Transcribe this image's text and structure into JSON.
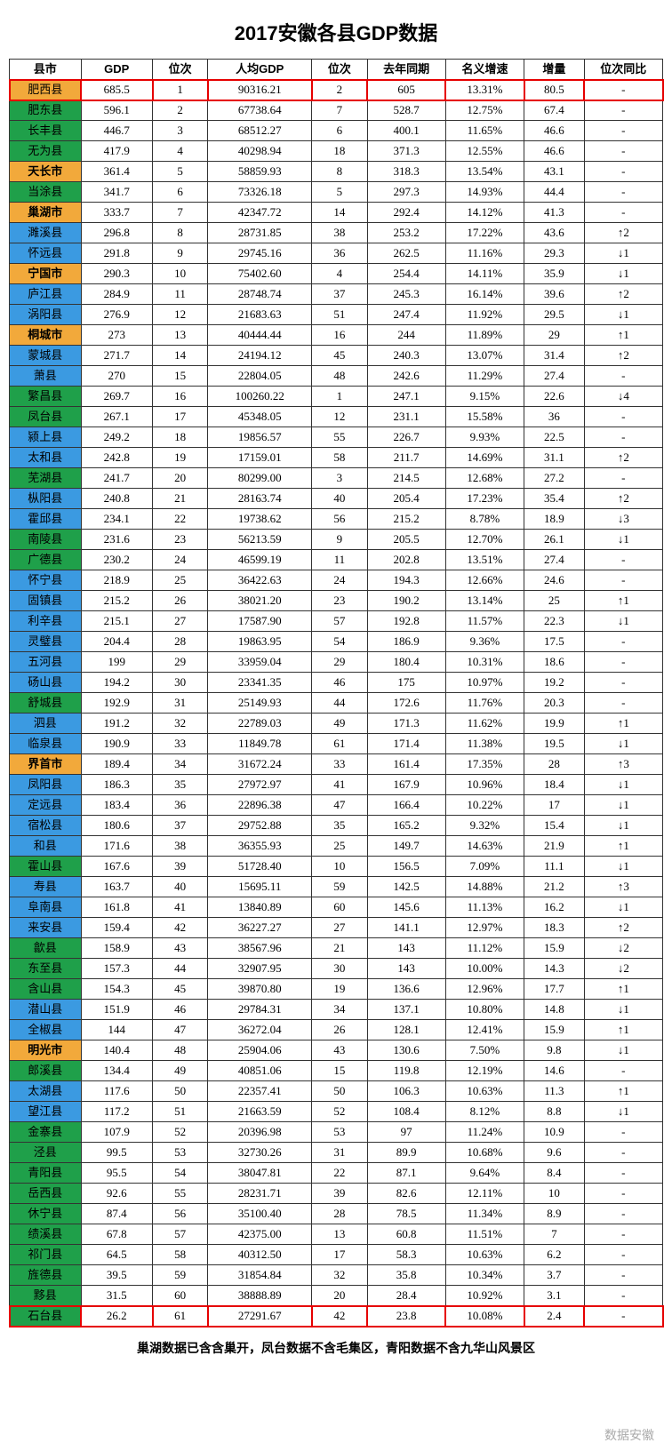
{
  "title": "2017安徽各县GDP数据",
  "footnote": "巢湖数据已含含巢开，凤台数据不含毛集区，青阳数据不含九华山风景区",
  "watermark": "数据安徽",
  "columns": [
    "县市",
    "GDP",
    "位次",
    "人均GDP",
    "位次",
    "去年同期",
    "名义增速",
    "增量",
    "位次同比"
  ],
  "colors": {
    "green": "#1fa04a",
    "blue": "#3b9ae1",
    "orange": "#f2a93b",
    "white": "#ffffff"
  },
  "rows": [
    {
      "c": "肥西县",
      "g": "685.5",
      "r1": "1",
      "p": "90316.21",
      "r2": "2",
      "pv": "605",
      "gr": "13.31%",
      "inc": "80.5",
      "ch": "-",
      "col": "orange",
      "city": false,
      "hl": true
    },
    {
      "c": "肥东县",
      "g": "596.1",
      "r1": "2",
      "p": "67738.64",
      "r2": "7",
      "pv": "528.7",
      "gr": "12.75%",
      "inc": "67.4",
      "ch": "-",
      "col": "green",
      "city": false
    },
    {
      "c": "长丰县",
      "g": "446.7",
      "r1": "3",
      "p": "68512.27",
      "r2": "6",
      "pv": "400.1",
      "gr": "11.65%",
      "inc": "46.6",
      "ch": "-",
      "col": "green",
      "city": false
    },
    {
      "c": "无为县",
      "g": "417.9",
      "r1": "4",
      "p": "40298.94",
      "r2": "18",
      "pv": "371.3",
      "gr": "12.55%",
      "inc": "46.6",
      "ch": "-",
      "col": "green",
      "city": false
    },
    {
      "c": "天长市",
      "g": "361.4",
      "r1": "5",
      "p": "58859.93",
      "r2": "8",
      "pv": "318.3",
      "gr": "13.54%",
      "inc": "43.1",
      "ch": "-",
      "col": "orange",
      "city": true
    },
    {
      "c": "当涂县",
      "g": "341.7",
      "r1": "6",
      "p": "73326.18",
      "r2": "5",
      "pv": "297.3",
      "gr": "14.93%",
      "inc": "44.4",
      "ch": "-",
      "col": "green",
      "city": false
    },
    {
      "c": "巢湖市",
      "g": "333.7",
      "r1": "7",
      "p": "42347.72",
      "r2": "14",
      "pv": "292.4",
      "gr": "14.12%",
      "inc": "41.3",
      "ch": "-",
      "col": "orange",
      "city": true
    },
    {
      "c": "濉溪县",
      "g": "296.8",
      "r1": "8",
      "p": "28731.85",
      "r2": "38",
      "pv": "253.2",
      "gr": "17.22%",
      "inc": "43.6",
      "ch": "↑2",
      "col": "blue",
      "city": false
    },
    {
      "c": "怀远县",
      "g": "291.8",
      "r1": "9",
      "p": "29745.16",
      "r2": "36",
      "pv": "262.5",
      "gr": "11.16%",
      "inc": "29.3",
      "ch": "↓1",
      "col": "blue",
      "city": false
    },
    {
      "c": "宁国市",
      "g": "290.3",
      "r1": "10",
      "p": "75402.60",
      "r2": "4",
      "pv": "254.4",
      "gr": "14.11%",
      "inc": "35.9",
      "ch": "↓1",
      "col": "orange",
      "city": true
    },
    {
      "c": "庐江县",
      "g": "284.9",
      "r1": "11",
      "p": "28748.74",
      "r2": "37",
      "pv": "245.3",
      "gr": "16.14%",
      "inc": "39.6",
      "ch": "↑2",
      "col": "blue",
      "city": false
    },
    {
      "c": "涡阳县",
      "g": "276.9",
      "r1": "12",
      "p": "21683.63",
      "r2": "51",
      "pv": "247.4",
      "gr": "11.92%",
      "inc": "29.5",
      "ch": "↓1",
      "col": "blue",
      "city": false
    },
    {
      "c": "桐城市",
      "g": "273",
      "r1": "13",
      "p": "40444.44",
      "r2": "16",
      "pv": "244",
      "gr": "11.89%",
      "inc": "29",
      "ch": "↑1",
      "col": "orange",
      "city": true
    },
    {
      "c": "蒙城县",
      "g": "271.7",
      "r1": "14",
      "p": "24194.12",
      "r2": "45",
      "pv": "240.3",
      "gr": "13.07%",
      "inc": "31.4",
      "ch": "↑2",
      "col": "blue",
      "city": false
    },
    {
      "c": "萧县",
      "g": "270",
      "r1": "15",
      "p": "22804.05",
      "r2": "48",
      "pv": "242.6",
      "gr": "11.29%",
      "inc": "27.4",
      "ch": "-",
      "col": "blue",
      "city": false
    },
    {
      "c": "繁昌县",
      "g": "269.7",
      "r1": "16",
      "p": "100260.22",
      "r2": "1",
      "pv": "247.1",
      "gr": "9.15%",
      "inc": "22.6",
      "ch": "↓4",
      "col": "green",
      "city": false
    },
    {
      "c": "凤台县",
      "g": "267.1",
      "r1": "17",
      "p": "45348.05",
      "r2": "12",
      "pv": "231.1",
      "gr": "15.58%",
      "inc": "36",
      "ch": "-",
      "col": "green",
      "city": false
    },
    {
      "c": "颍上县",
      "g": "249.2",
      "r1": "18",
      "p": "19856.57",
      "r2": "55",
      "pv": "226.7",
      "gr": "9.93%",
      "inc": "22.5",
      "ch": "-",
      "col": "blue",
      "city": false
    },
    {
      "c": "太和县",
      "g": "242.8",
      "r1": "19",
      "p": "17159.01",
      "r2": "58",
      "pv": "211.7",
      "gr": "14.69%",
      "inc": "31.1",
      "ch": "↑2",
      "col": "blue",
      "city": false
    },
    {
      "c": "芜湖县",
      "g": "241.7",
      "r1": "20",
      "p": "80299.00",
      "r2": "3",
      "pv": "214.5",
      "gr": "12.68%",
      "inc": "27.2",
      "ch": "-",
      "col": "green",
      "city": false
    },
    {
      "c": "枞阳县",
      "g": "240.8",
      "r1": "21",
      "p": "28163.74",
      "r2": "40",
      "pv": "205.4",
      "gr": "17.23%",
      "inc": "35.4",
      "ch": "↑2",
      "col": "blue",
      "city": false
    },
    {
      "c": "霍邱县",
      "g": "234.1",
      "r1": "22",
      "p": "19738.62",
      "r2": "56",
      "pv": "215.2",
      "gr": "8.78%",
      "inc": "18.9",
      "ch": "↓3",
      "col": "blue",
      "city": false
    },
    {
      "c": "南陵县",
      "g": "231.6",
      "r1": "23",
      "p": "56213.59",
      "r2": "9",
      "pv": "205.5",
      "gr": "12.70%",
      "inc": "26.1",
      "ch": "↓1",
      "col": "green",
      "city": false
    },
    {
      "c": "广德县",
      "g": "230.2",
      "r1": "24",
      "p": "46599.19",
      "r2": "11",
      "pv": "202.8",
      "gr": "13.51%",
      "inc": "27.4",
      "ch": "-",
      "col": "green",
      "city": false
    },
    {
      "c": "怀宁县",
      "g": "218.9",
      "r1": "25",
      "p": "36422.63",
      "r2": "24",
      "pv": "194.3",
      "gr": "12.66%",
      "inc": "24.6",
      "ch": "-",
      "col": "blue",
      "city": false
    },
    {
      "c": "固镇县",
      "g": "215.2",
      "r1": "26",
      "p": "38021.20",
      "r2": "23",
      "pv": "190.2",
      "gr": "13.14%",
      "inc": "25",
      "ch": "↑1",
      "col": "blue",
      "city": false
    },
    {
      "c": "利辛县",
      "g": "215.1",
      "r1": "27",
      "p": "17587.90",
      "r2": "57",
      "pv": "192.8",
      "gr": "11.57%",
      "inc": "22.3",
      "ch": "↓1",
      "col": "blue",
      "city": false
    },
    {
      "c": "灵璧县",
      "g": "204.4",
      "r1": "28",
      "p": "19863.95",
      "r2": "54",
      "pv": "186.9",
      "gr": "9.36%",
      "inc": "17.5",
      "ch": "-",
      "col": "blue",
      "city": false
    },
    {
      "c": "五河县",
      "g": "199",
      "r1": "29",
      "p": "33959.04",
      "r2": "29",
      "pv": "180.4",
      "gr": "10.31%",
      "inc": "18.6",
      "ch": "-",
      "col": "blue",
      "city": false
    },
    {
      "c": "砀山县",
      "g": "194.2",
      "r1": "30",
      "p": "23341.35",
      "r2": "46",
      "pv": "175",
      "gr": "10.97%",
      "inc": "19.2",
      "ch": "-",
      "col": "blue",
      "city": false
    },
    {
      "c": "舒城县",
      "g": "192.9",
      "r1": "31",
      "p": "25149.93",
      "r2": "44",
      "pv": "172.6",
      "gr": "11.76%",
      "inc": "20.3",
      "ch": "-",
      "col": "green",
      "city": false
    },
    {
      "c": "泗县",
      "g": "191.2",
      "r1": "32",
      "p": "22789.03",
      "r2": "49",
      "pv": "171.3",
      "gr": "11.62%",
      "inc": "19.9",
      "ch": "↑1",
      "col": "blue",
      "city": false
    },
    {
      "c": "临泉县",
      "g": "190.9",
      "r1": "33",
      "p": "11849.78",
      "r2": "61",
      "pv": "171.4",
      "gr": "11.38%",
      "inc": "19.5",
      "ch": "↓1",
      "col": "blue",
      "city": false
    },
    {
      "c": "界首市",
      "g": "189.4",
      "r1": "34",
      "p": "31672.24",
      "r2": "33",
      "pv": "161.4",
      "gr": "17.35%",
      "inc": "28",
      "ch": "↑3",
      "col": "orange",
      "city": true
    },
    {
      "c": "凤阳县",
      "g": "186.3",
      "r1": "35",
      "p": "27972.97",
      "r2": "41",
      "pv": "167.9",
      "gr": "10.96%",
      "inc": "18.4",
      "ch": "↓1",
      "col": "blue",
      "city": false
    },
    {
      "c": "定远县",
      "g": "183.4",
      "r1": "36",
      "p": "22896.38",
      "r2": "47",
      "pv": "166.4",
      "gr": "10.22%",
      "inc": "17",
      "ch": "↓1",
      "col": "blue",
      "city": false
    },
    {
      "c": "宿松县",
      "g": "180.6",
      "r1": "37",
      "p": "29752.88",
      "r2": "35",
      "pv": "165.2",
      "gr": "9.32%",
      "inc": "15.4",
      "ch": "↓1",
      "col": "blue",
      "city": false
    },
    {
      "c": "和县",
      "g": "171.6",
      "r1": "38",
      "p": "36355.93",
      "r2": "25",
      "pv": "149.7",
      "gr": "14.63%",
      "inc": "21.9",
      "ch": "↑1",
      "col": "blue",
      "city": false
    },
    {
      "c": "霍山县",
      "g": "167.6",
      "r1": "39",
      "p": "51728.40",
      "r2": "10",
      "pv": "156.5",
      "gr": "7.09%",
      "inc": "11.1",
      "ch": "↓1",
      "col": "green",
      "city": false
    },
    {
      "c": "寿县",
      "g": "163.7",
      "r1": "40",
      "p": "15695.11",
      "r2": "59",
      "pv": "142.5",
      "gr": "14.88%",
      "inc": "21.2",
      "ch": "↑3",
      "col": "blue",
      "city": false
    },
    {
      "c": "阜南县",
      "g": "161.8",
      "r1": "41",
      "p": "13840.89",
      "r2": "60",
      "pv": "145.6",
      "gr": "11.13%",
      "inc": "16.2",
      "ch": "↓1",
      "col": "blue",
      "city": false
    },
    {
      "c": "来安县",
      "g": "159.4",
      "r1": "42",
      "p": "36227.27",
      "r2": "27",
      "pv": "141.1",
      "gr": "12.97%",
      "inc": "18.3",
      "ch": "↑2",
      "col": "blue",
      "city": false
    },
    {
      "c": "歙县",
      "g": "158.9",
      "r1": "43",
      "p": "38567.96",
      "r2": "21",
      "pv": "143",
      "gr": "11.12%",
      "inc": "15.9",
      "ch": "↓2",
      "col": "green",
      "city": false
    },
    {
      "c": "东至县",
      "g": "157.3",
      "r1": "44",
      "p": "32907.95",
      "r2": "30",
      "pv": "143",
      "gr": "10.00%",
      "inc": "14.3",
      "ch": "↓2",
      "col": "green",
      "city": false
    },
    {
      "c": "含山县",
      "g": "154.3",
      "r1": "45",
      "p": "39870.80",
      "r2": "19",
      "pv": "136.6",
      "gr": "12.96%",
      "inc": "17.7",
      "ch": "↑1",
      "col": "green",
      "city": false
    },
    {
      "c": "潜山县",
      "g": "151.9",
      "r1": "46",
      "p": "29784.31",
      "r2": "34",
      "pv": "137.1",
      "gr": "10.80%",
      "inc": "14.8",
      "ch": "↓1",
      "col": "blue",
      "city": false
    },
    {
      "c": "全椒县",
      "g": "144",
      "r1": "47",
      "p": "36272.04",
      "r2": "26",
      "pv": "128.1",
      "gr": "12.41%",
      "inc": "15.9",
      "ch": "↑1",
      "col": "blue",
      "city": false
    },
    {
      "c": "明光市",
      "g": "140.4",
      "r1": "48",
      "p": "25904.06",
      "r2": "43",
      "pv": "130.6",
      "gr": "7.50%",
      "inc": "9.8",
      "ch": "↓1",
      "col": "orange",
      "city": true
    },
    {
      "c": "郎溪县",
      "g": "134.4",
      "r1": "49",
      "p": "40851.06",
      "r2": "15",
      "pv": "119.8",
      "gr": "12.19%",
      "inc": "14.6",
      "ch": "-",
      "col": "green",
      "city": false
    },
    {
      "c": "太湖县",
      "g": "117.6",
      "r1": "50",
      "p": "22357.41",
      "r2": "50",
      "pv": "106.3",
      "gr": "10.63%",
      "inc": "11.3",
      "ch": "↑1",
      "col": "blue",
      "city": false
    },
    {
      "c": "望江县",
      "g": "117.2",
      "r1": "51",
      "p": "21663.59",
      "r2": "52",
      "pv": "108.4",
      "gr": "8.12%",
      "inc": "8.8",
      "ch": "↓1",
      "col": "blue",
      "city": false
    },
    {
      "c": "金寨县",
      "g": "107.9",
      "r1": "52",
      "p": "20396.98",
      "r2": "53",
      "pv": "97",
      "gr": "11.24%",
      "inc": "10.9",
      "ch": "-",
      "col": "green",
      "city": false
    },
    {
      "c": "泾县",
      "g": "99.5",
      "r1": "53",
      "p": "32730.26",
      "r2": "31",
      "pv": "89.9",
      "gr": "10.68%",
      "inc": "9.6",
      "ch": "-",
      "col": "green",
      "city": false
    },
    {
      "c": "青阳县",
      "g": "95.5",
      "r1": "54",
      "p": "38047.81",
      "r2": "22",
      "pv": "87.1",
      "gr": "9.64%",
      "inc": "8.4",
      "ch": "-",
      "col": "green",
      "city": false
    },
    {
      "c": "岳西县",
      "g": "92.6",
      "r1": "55",
      "p": "28231.71",
      "r2": "39",
      "pv": "82.6",
      "gr": "12.11%",
      "inc": "10",
      "ch": "-",
      "col": "green",
      "city": false
    },
    {
      "c": "休宁县",
      "g": "87.4",
      "r1": "56",
      "p": "35100.40",
      "r2": "28",
      "pv": "78.5",
      "gr": "11.34%",
      "inc": "8.9",
      "ch": "-",
      "col": "green",
      "city": false
    },
    {
      "c": "绩溪县",
      "g": "67.8",
      "r1": "57",
      "p": "42375.00",
      "r2": "13",
      "pv": "60.8",
      "gr": "11.51%",
      "inc": "7",
      "ch": "-",
      "col": "green",
      "city": false
    },
    {
      "c": "祁门县",
      "g": "64.5",
      "r1": "58",
      "p": "40312.50",
      "r2": "17",
      "pv": "58.3",
      "gr": "10.63%",
      "inc": "6.2",
      "ch": "-",
      "col": "green",
      "city": false
    },
    {
      "c": "旌德县",
      "g": "39.5",
      "r1": "59",
      "p": "31854.84",
      "r2": "32",
      "pv": "35.8",
      "gr": "10.34%",
      "inc": "3.7",
      "ch": "-",
      "col": "green",
      "city": false
    },
    {
      "c": "黟县",
      "g": "31.5",
      "r1": "60",
      "p": "38888.89",
      "r2": "20",
      "pv": "28.4",
      "gr": "10.92%",
      "inc": "3.1",
      "ch": "-",
      "col": "green",
      "city": false
    },
    {
      "c": "石台县",
      "g": "26.2",
      "r1": "61",
      "p": "27291.67",
      "r2": "42",
      "pv": "23.8",
      "gr": "10.08%",
      "inc": "2.4",
      "ch": "-",
      "col": "green",
      "city": false,
      "hl": true
    }
  ]
}
